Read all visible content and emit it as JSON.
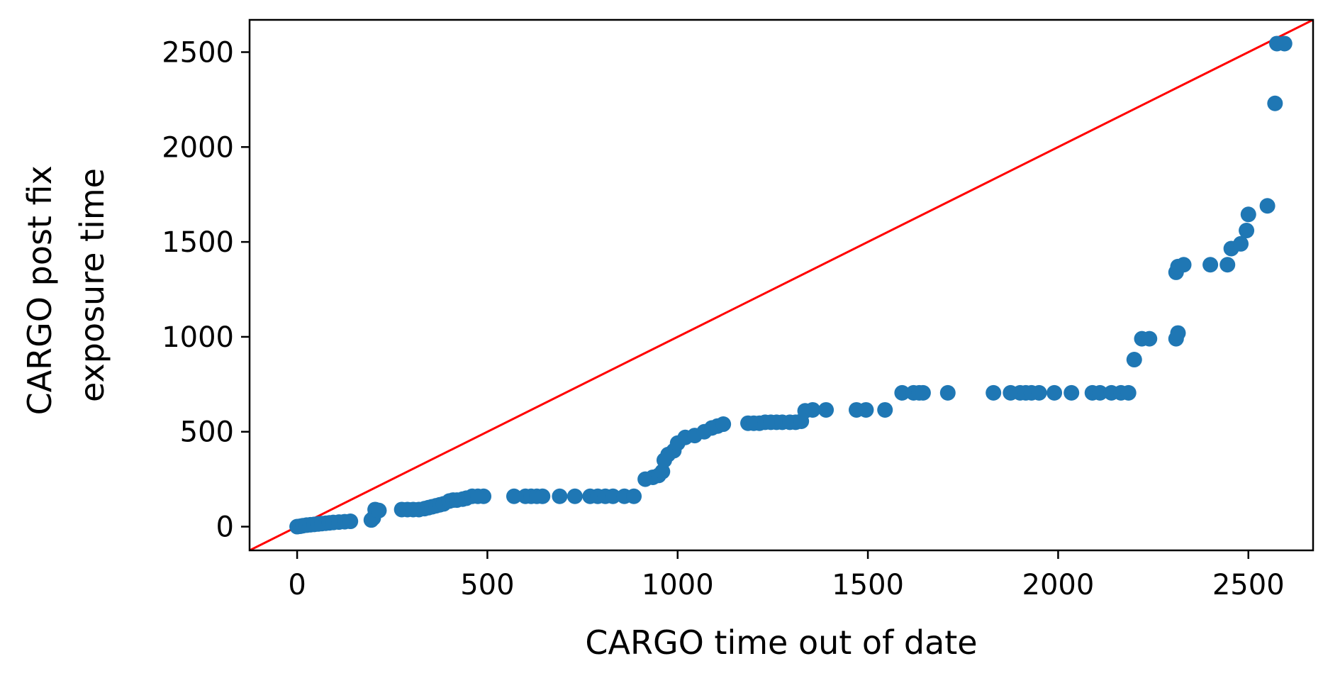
{
  "chart_data": {
    "type": "scatter",
    "title": "",
    "xlabel": "CARGO time out of date",
    "ylabel_lines": [
      "CARGO post fix",
      "exposure time"
    ],
    "xlim": [
      -125,
      2670
    ],
    "ylim": [
      -125,
      2670
    ],
    "xticks": [
      0,
      500,
      1000,
      1500,
      2000,
      2500
    ],
    "yticks": [
      0,
      500,
      1000,
      1500,
      2000,
      2500
    ],
    "grid": false,
    "legend": "none",
    "reference_line": {
      "from": [
        -125,
        -125
      ],
      "to": [
        2670,
        2670
      ],
      "color": "#ff0000"
    },
    "series": [
      {
        "color": "#1f77b4",
        "points": [
          [
            0,
            0
          ],
          [
            8,
            2
          ],
          [
            15,
            5
          ],
          [
            25,
            8
          ],
          [
            35,
            10
          ],
          [
            45,
            12
          ],
          [
            55,
            14
          ],
          [
            65,
            16
          ],
          [
            75,
            18
          ],
          [
            85,
            20
          ],
          [
            95,
            22
          ],
          [
            110,
            24
          ],
          [
            125,
            26
          ],
          [
            140,
            28
          ],
          [
            195,
            35
          ],
          [
            200,
            45
          ],
          [
            205,
            90
          ],
          [
            215,
            85
          ],
          [
            275,
            90
          ],
          [
            290,
            90
          ],
          [
            305,
            90
          ],
          [
            320,
            90
          ],
          [
            335,
            95
          ],
          [
            345,
            100
          ],
          [
            355,
            105
          ],
          [
            365,
            110
          ],
          [
            375,
            115
          ],
          [
            385,
            120
          ],
          [
            400,
            135
          ],
          [
            410,
            140
          ],
          [
            420,
            140
          ],
          [
            435,
            145
          ],
          [
            445,
            150
          ],
          [
            460,
            160
          ],
          [
            475,
            160
          ],
          [
            490,
            160
          ],
          [
            570,
            160
          ],
          [
            600,
            160
          ],
          [
            615,
            160
          ],
          [
            630,
            160
          ],
          [
            645,
            160
          ],
          [
            690,
            160
          ],
          [
            730,
            160
          ],
          [
            770,
            160
          ],
          [
            790,
            160
          ],
          [
            810,
            160
          ],
          [
            830,
            160
          ],
          [
            860,
            160
          ],
          [
            885,
            160
          ],
          [
            915,
            250
          ],
          [
            935,
            260
          ],
          [
            950,
            270
          ],
          [
            960,
            290
          ],
          [
            965,
            350
          ],
          [
            975,
            380
          ],
          [
            990,
            400
          ],
          [
            1000,
            440
          ],
          [
            1020,
            470
          ],
          [
            1045,
            480
          ],
          [
            1070,
            500
          ],
          [
            1090,
            520
          ],
          [
            1105,
            530
          ],
          [
            1120,
            540
          ],
          [
            1185,
            545
          ],
          [
            1200,
            545
          ],
          [
            1215,
            545
          ],
          [
            1230,
            550
          ],
          [
            1245,
            550
          ],
          [
            1260,
            550
          ],
          [
            1275,
            550
          ],
          [
            1295,
            550
          ],
          [
            1310,
            550
          ],
          [
            1325,
            555
          ],
          [
            1335,
            610
          ],
          [
            1355,
            615
          ],
          [
            1390,
            615
          ],
          [
            1470,
            615
          ],
          [
            1495,
            615
          ],
          [
            1545,
            615
          ],
          [
            1590,
            705
          ],
          [
            1620,
            705
          ],
          [
            1635,
            705
          ],
          [
            1645,
            705
          ],
          [
            1710,
            705
          ],
          [
            1830,
            705
          ],
          [
            1875,
            705
          ],
          [
            1900,
            705
          ],
          [
            1915,
            705
          ],
          [
            1930,
            705
          ],
          [
            1950,
            705
          ],
          [
            1990,
            705
          ],
          [
            2035,
            705
          ],
          [
            2090,
            705
          ],
          [
            2110,
            705
          ],
          [
            2140,
            705
          ],
          [
            2165,
            705
          ],
          [
            2185,
            705
          ],
          [
            2200,
            880
          ],
          [
            2220,
            990
          ],
          [
            2240,
            990
          ],
          [
            2310,
            990
          ],
          [
            2315,
            1020
          ],
          [
            2310,
            1340
          ],
          [
            2315,
            1370
          ],
          [
            2330,
            1380
          ],
          [
            2400,
            1380
          ],
          [
            2445,
            1380
          ],
          [
            2455,
            1465
          ],
          [
            2480,
            1490
          ],
          [
            2495,
            1560
          ],
          [
            2500,
            1645
          ],
          [
            2550,
            1690
          ],
          [
            2570,
            2230
          ],
          [
            2575,
            2545
          ],
          [
            2595,
            2545
          ]
        ]
      }
    ]
  }
}
